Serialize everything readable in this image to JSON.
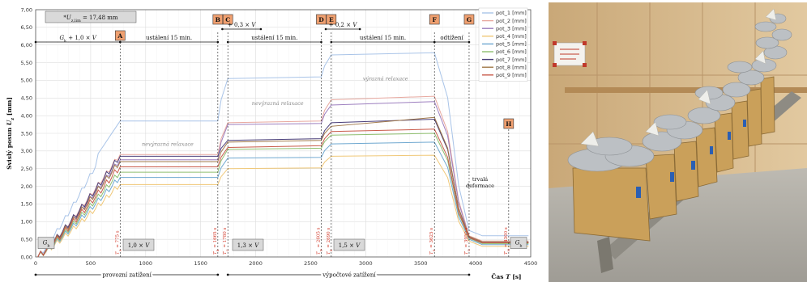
{
  "chart_data": {
    "type": "line",
    "xlabel": "Čas T [s]",
    "ylabel": "Svislý posun U_z [mm]",
    "xlim": [
      0,
      4500
    ],
    "ylim": [
      0.0,
      7.0
    ],
    "x_ticks": [
      "0",
      "500",
      "1000",
      "1500",
      "2000",
      "2500",
      "3000",
      "3500",
      "4000",
      "4500"
    ],
    "y_ticks": [
      "0,00",
      "0,50",
      "1,00",
      "1,50",
      "2,00",
      "2,50",
      "3,00",
      "3,50",
      "4,00",
      "4,50",
      "5,00",
      "5,50",
      "6,00",
      "6,50",
      "7,00"
    ],
    "grid": true,
    "legend_position": "top-right",
    "uz_lim_label": "*U_z,lim = 17,48 mm",
    "series": [
      {
        "name": "pot_1 [mm]",
        "color": "#a9c4e8",
        "levels": [
          3.85,
          3.85,
          5.05,
          5.1,
          5.72,
          5.78,
          0.6
        ]
      },
      {
        "name": "pot_2 [mm]",
        "color": "#e8a9a0",
        "levels": [
          2.9,
          2.9,
          3.8,
          3.85,
          4.45,
          4.55,
          0.45
        ]
      },
      {
        "name": "pot_3 [mm]",
        "color": "#9d7fbf",
        "levels": [
          2.75,
          2.75,
          3.75,
          3.78,
          4.3,
          4.4,
          0.42
        ]
      },
      {
        "name": "pot_4 [mm]",
        "color": "#f0c878",
        "levels": [
          2.05,
          2.05,
          2.5,
          2.52,
          2.85,
          2.88,
          0.3
        ]
      },
      {
        "name": "pot_5 [mm]",
        "color": "#6fa8d0",
        "levels": [
          2.25,
          2.25,
          2.8,
          2.82,
          3.2,
          3.25,
          0.35
        ]
      },
      {
        "name": "pot_6 [mm]",
        "color": "#8fbf6f",
        "levels": [
          2.4,
          2.4,
          3.05,
          3.08,
          3.45,
          3.5,
          0.38
        ]
      },
      {
        "name": "pot_7 [mm]",
        "color": "#4a3f7a",
        "levels": [
          2.85,
          2.85,
          3.3,
          3.35,
          3.8,
          3.9,
          0.4
        ]
      },
      {
        "name": "pot_8 [mm]",
        "color": "#a0784a",
        "levels": [
          2.7,
          2.7,
          3.25,
          3.3,
          3.7,
          3.95,
          0.43
        ]
      },
      {
        "name": "pot_9 [mm]",
        "color": "#c85a4a",
        "levels": [
          2.55,
          2.55,
          3.1,
          3.15,
          3.55,
          3.62,
          0.4
        ]
      }
    ],
    "phase_labels": {
      "phase1_load": "G_k + 1,0 × V",
      "phase1_hold": "ustálení 15 min.",
      "phase2_load": "+ 0,3 × V",
      "phase2_hold": "ustálení 15 min.",
      "phase3_load": "+ 0,2 × V",
      "phase3_hold": "ustálení 15 min.",
      "unload": "odtížení",
      "residual_line1": "trvalá",
      "residual_line2": "deformace"
    },
    "markers": [
      {
        "letter": "A",
        "t": 768,
        "label": "T_A = 775 s"
      },
      {
        "letter": "B",
        "t": 1656,
        "label": "T_B = 1665 s"
      },
      {
        "letter": "C",
        "t": 1747,
        "label": "T_C = 1780 s"
      },
      {
        "letter": "D",
        "t": 2596,
        "label": "T_D = 2605 s"
      },
      {
        "letter": "E",
        "t": 2687,
        "label": "T_E = 2690 s"
      },
      {
        "letter": "F",
        "t": 3625,
        "label": "T_F = 3625 s"
      },
      {
        "letter": "G",
        "t": 3940,
        "label": "T_G = 3950 s"
      },
      {
        "letter": "H",
        "t": 4300,
        "label": "T_H = 4300 s"
      }
    ],
    "annotations": {
      "relax1": "nevýrazná relaxace",
      "relax2": "nevýrazná relaxace",
      "relax3": "výrazná relaxace"
    },
    "load_boxes": {
      "gk_left": "G_k",
      "gk_right": "G_k",
      "v1": "1,0 × V",
      "v2": "1,3 × V",
      "v3": "1,5 × V"
    },
    "bottom_labels": {
      "operational": "provozní zatížení",
      "design": "výpočtové zatížení"
    }
  },
  "colors": {
    "marker_box": "#f0a070",
    "grid": "#dddddd"
  }
}
